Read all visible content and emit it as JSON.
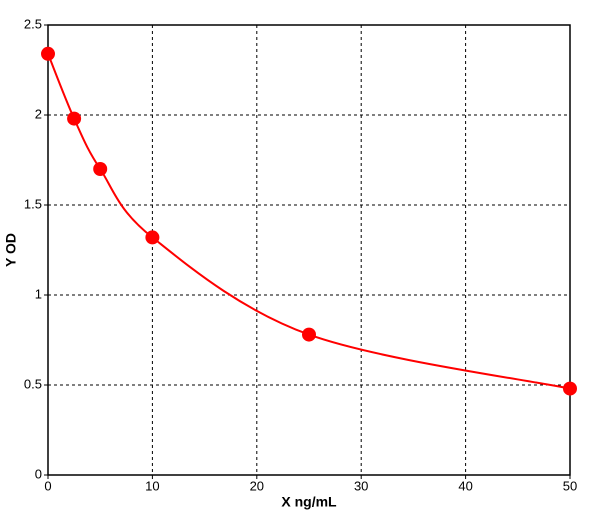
{
  "chart_data": {
    "type": "scatter",
    "x": [
      0,
      2.5,
      5,
      10,
      25,
      50
    ],
    "values": [
      2.34,
      1.98,
      1.7,
      1.32,
      0.78,
      0.48
    ],
    "color": "#ff0000",
    "xlim": [
      0,
      50
    ],
    "xticks": [
      0,
      10,
      20,
      30,
      40,
      50
    ],
    "ylim": [
      0,
      2.5
    ],
    "yticks": [
      0,
      0.5,
      1,
      1.5,
      2,
      2.5
    ],
    "xlabel": "X ng/mL",
    "ylabel": "Y OD",
    "grid": true,
    "line": true
  }
}
